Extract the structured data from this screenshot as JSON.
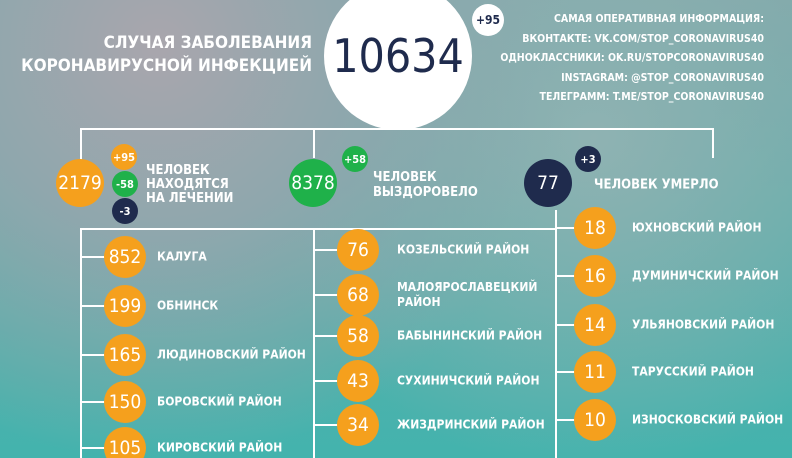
{
  "header": {
    "title_line1": "СЛУЧАЯ ЗАБОЛЕВАНИЯ",
    "title_line2": "КОРОНАВИРУСНОЙ ИНФЕКЦИЕЙ",
    "total": "10634",
    "total_delta": "+95"
  },
  "info": [
    "САМАЯ ОПЕРАТИВНАЯ ИНФОРМАЦИЯ:",
    "ВКОНТАКТЕ: VK.COM/STOP_CORONAVIRUS40",
    "ОДНОКЛАССНИКИ: OK.RU/STOPCORONAVIRUS40",
    "INSTAGRAM: @STOP_CORONAVIRUS40",
    "ТЕЛЕГРАММ: T.ME/STOP_CORONAVIRUS40"
  ],
  "stats": {
    "treatment": {
      "value": "2179",
      "d1": "+95",
      "d2": "-58",
      "d3": "-3",
      "label1": "ЧЕЛОВЕК",
      "label2": "НАХОДЯТСЯ",
      "label3": "НА ЛЕЧЕНИИ"
    },
    "recovered": {
      "value": "8378",
      "delta": "+58",
      "label1": "ЧЕЛОВЕК",
      "label2": "ВЫЗДОРОВЕЛО"
    },
    "died": {
      "value": "77",
      "delta": "+3",
      "label": "ЧЕЛОВЕК УМЕРЛО"
    }
  },
  "colors": {
    "orange": "#f5a01d",
    "green": "#1fb14a",
    "navy": "#1f2b4d"
  },
  "col1": [
    {
      "v": "852",
      "n": "КАЛУГА"
    },
    {
      "v": "199",
      "n": "ОБНИНСК"
    },
    {
      "v": "165",
      "n": "ЛЮДИНОВСКИЙ РАЙОН"
    },
    {
      "v": "150",
      "n": "БОРОВСКИЙ РАЙОН"
    },
    {
      "v": "105",
      "n": "КИРОВСКИЙ РАЙОН"
    }
  ],
  "col2": [
    {
      "v": "76",
      "n": "КОЗЕЛЬСКИЙ РАЙОН"
    },
    {
      "v": "68",
      "n": "МАЛОЯРОСЛАВЕЦКИЙ",
      "n2": "РАЙОН"
    },
    {
      "v": "58",
      "n": "БАБЫНИНСКИЙ РАЙОН"
    },
    {
      "v": "43",
      "n": "СУХИНИЧСКИЙ РАЙОН"
    },
    {
      "v": "34",
      "n": "ЖИЗДРИНСКИЙ РАЙОН"
    }
  ],
  "col3": [
    {
      "v": "18",
      "n": "ЮХНОВСКИЙ РАЙОН"
    },
    {
      "v": "16",
      "n": "ДУМИНИЧСКИЙ РАЙОН"
    },
    {
      "v": "14",
      "n": "УЛЬЯНОВСКИЙ РАЙОН"
    },
    {
      "v": "11",
      "n": "ТАРУССКИЙ РАЙОН"
    },
    {
      "v": "10",
      "n": "ИЗНОСКОВСКИЙ РАЙОН"
    }
  ]
}
